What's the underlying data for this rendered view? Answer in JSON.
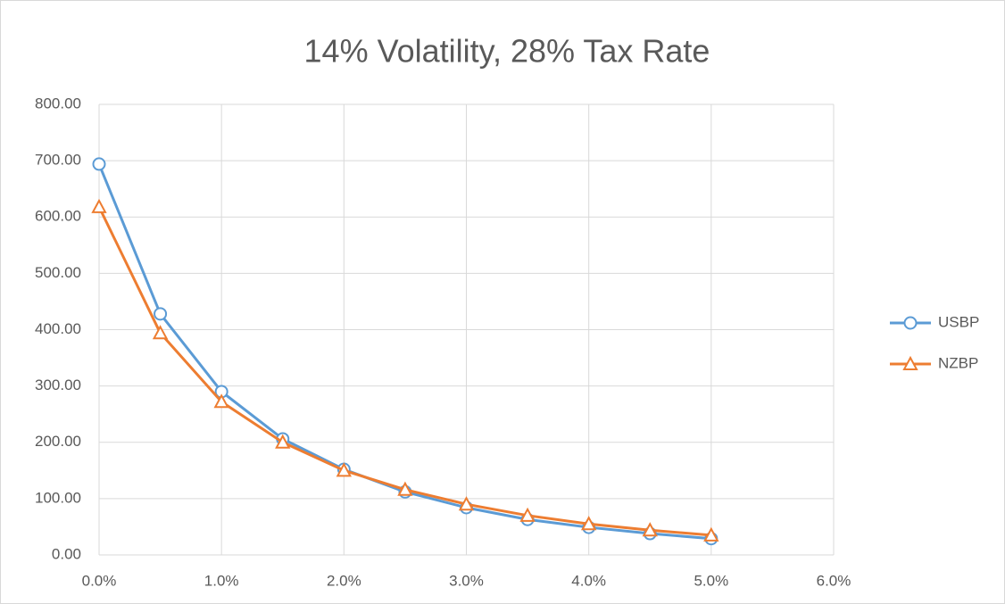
{
  "chart_data": {
    "type": "line",
    "title": "14% Volatility, 28% Tax Rate",
    "x": [
      0,
      0.5,
      1.0,
      1.5,
      2.0,
      2.5,
      3.0,
      3.5,
      4.0,
      4.5,
      5.0
    ],
    "series": [
      {
        "name": "USBP",
        "color": "#5b9bd5",
        "marker": "circle",
        "values": [
          694,
          428,
          290,
          206,
          152,
          112,
          84,
          63,
          49,
          38,
          29
        ]
      },
      {
        "name": "NZBP",
        "color": "#ed7d31",
        "marker": "triangle",
        "values": [
          618,
          394,
          272,
          200,
          150,
          116,
          90,
          70,
          55,
          44,
          35
        ]
      }
    ],
    "xlim": [
      0,
      6
    ],
    "xticks": [
      {
        "value": 0,
        "label": "0.0%"
      },
      {
        "value": 1,
        "label": "1.0%"
      },
      {
        "value": 2,
        "label": "2.0%"
      },
      {
        "value": 3,
        "label": "3.0%"
      },
      {
        "value": 4,
        "label": "4.0%"
      },
      {
        "value": 5,
        "label": "5.0%"
      },
      {
        "value": 6,
        "label": "6.0%"
      }
    ],
    "ylim": [
      0,
      800
    ],
    "yticks": [
      {
        "value": 0,
        "label": "0.00"
      },
      {
        "value": 100,
        "label": "100.00"
      },
      {
        "value": 200,
        "label": "200.00"
      },
      {
        "value": 300,
        "label": "300.00"
      },
      {
        "value": 400,
        "label": "400.00"
      },
      {
        "value": 500,
        "label": "500.00"
      },
      {
        "value": 600,
        "label": "600.00"
      },
      {
        "value": 700,
        "label": "700.00"
      },
      {
        "value": 800,
        "label": "800.00"
      }
    ],
    "grid": true,
    "legend": "right"
  }
}
